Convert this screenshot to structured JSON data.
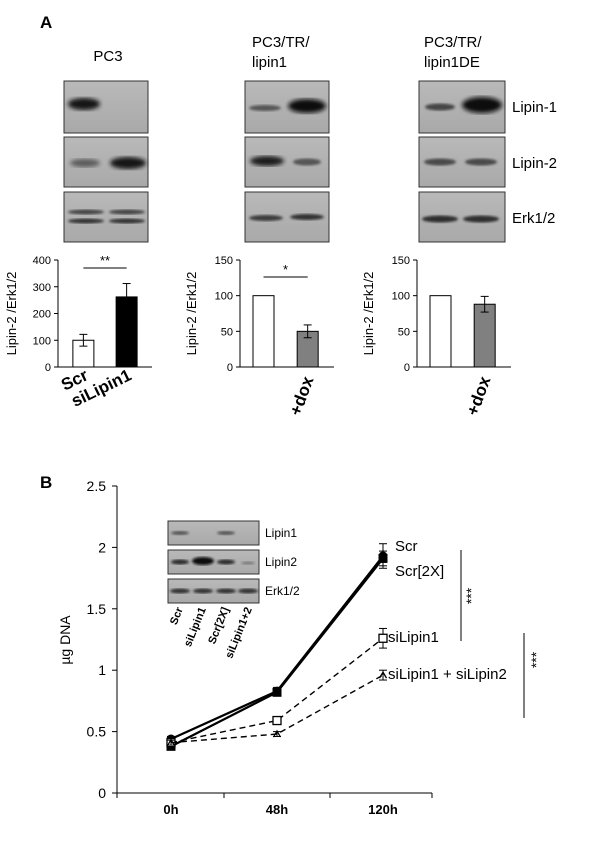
{
  "panel_a": {
    "label": "A",
    "row_labels": [
      "Lipin-1",
      "Lipin-2",
      "Erk1/2"
    ],
    "blots": [
      {
        "title_lines": [
          "PC3"
        ]
      },
      {
        "title_lines": [
          "PC3/TR/",
          "lipin1"
        ]
      },
      {
        "title_lines": [
          "PC3/TR/",
          "lipin1DE"
        ]
      }
    ]
  },
  "panel_b": {
    "label": "B",
    "blot_rows": [
      "Lipin1",
      "Lipin2",
      "Erk1/2"
    ],
    "blot_lanes": [
      "Scr",
      "siLipin1",
      "Scr[2X]",
      "siLipin1+2"
    ],
    "significance": [
      "***",
      "***"
    ]
  },
  "chart_data": [
    {
      "type": "bar",
      "categories": [
        "Scr",
        "siLipin1"
      ],
      "values": [
        100,
        262
      ],
      "errors": [
        22,
        50
      ],
      "colors": [
        "#ffffff",
        "#000000"
      ],
      "ylabel": "Lipin-2 /Erk1/2",
      "ylim": [
        0,
        400
      ],
      "yticks": [
        0,
        100,
        200,
        300,
        400
      ],
      "significance": "**"
    },
    {
      "type": "bar",
      "categories": [
        "",
        "+dox"
      ],
      "values": [
        100,
        50
      ],
      "errors": [
        0,
        9
      ],
      "colors": [
        "#ffffff",
        "#808080"
      ],
      "ylabel": "Lipin-2 /Erk1/2",
      "ylim": [
        0,
        150
      ],
      "yticks": [
        0,
        50,
        100,
        150
      ],
      "significance": "*"
    },
    {
      "type": "bar",
      "categories": [
        "",
        "+dox"
      ],
      "values": [
        100,
        88
      ],
      "errors": [
        0,
        11
      ],
      "colors": [
        "#ffffff",
        "#808080"
      ],
      "ylabel": "Lipin-2 /Erk1/2",
      "ylim": [
        0,
        150
      ],
      "yticks": [
        0,
        50,
        100,
        150
      ],
      "significance": ""
    },
    {
      "type": "line",
      "x": [
        "0h",
        "48h",
        "120h"
      ],
      "ylabel": "µg DNA",
      "ylim": [
        0,
        2.5
      ],
      "yticks": [
        "0",
        "0.5",
        "1",
        "1.5",
        "2",
        "2.5"
      ],
      "series": [
        {
          "name": "Scr",
          "values": [
            0.44,
            0.83,
            1.93
          ],
          "errors": [
            0.02,
            0.03,
            0.1
          ],
          "style": "solid",
          "marker": "filled-circle"
        },
        {
          "name": "Scr[2X]",
          "values": [
            0.38,
            0.82,
            1.91
          ],
          "errors": [
            0.02,
            0.03,
            0.06
          ],
          "style": "solid",
          "marker": "filled-square"
        },
        {
          "name": "siLipin1",
          "values": [
            0.41,
            0.59,
            1.26
          ],
          "errors": [
            0.02,
            0.02,
            0.08
          ],
          "style": "dashed",
          "marker": "open-square"
        },
        {
          "name": "siLipin1 + siLipin2",
          "values": [
            0.41,
            0.48,
            0.96
          ],
          "errors": [
            0.02,
            0.02,
            0.04
          ],
          "style": "dashed",
          "marker": "triangle"
        }
      ]
    }
  ]
}
